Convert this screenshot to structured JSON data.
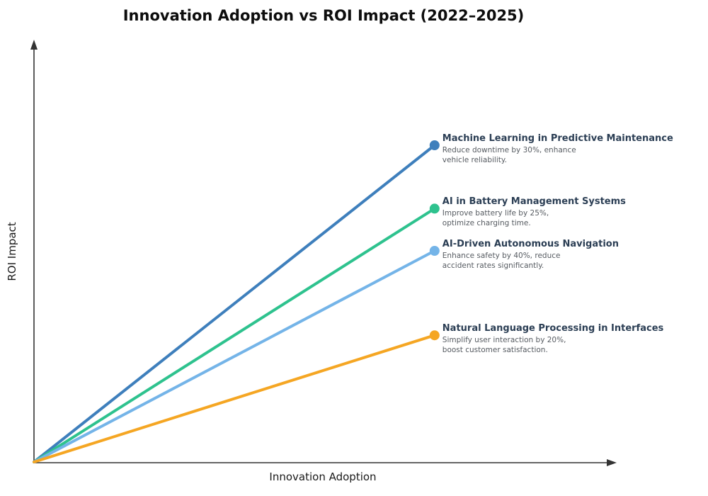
{
  "chart_data": {
    "type": "line",
    "title": "Innovation Adoption vs ROI Impact (2022–2025)",
    "xlabel": "Innovation Adoption",
    "ylabel": "ROI Impact",
    "xlim": [
      0,
      1
    ],
    "ylim": [
      0,
      1
    ],
    "grid": false,
    "ticks": "none (bare arrow-tipped axes, unitless)",
    "legend": "inline labels at line endpoints, right side",
    "axis_color": "#333333",
    "series": [
      {
        "name": "Machine Learning in Predictive Maintenance",
        "description_lines": [
          "Reduce downtime by 30%, enhance",
          "vehicle reliability."
        ],
        "color": "#3e7fbc",
        "x": [
          0,
          0.69
        ],
        "y": [
          0,
          0.75
        ]
      },
      {
        "name": "AI in Battery Management Systems",
        "description_lines": [
          "Improve battery life by 25%,",
          "optimize charging time."
        ],
        "color": "#2ec28e",
        "x": [
          0,
          0.69
        ],
        "y": [
          0,
          0.6
        ]
      },
      {
        "name": "AI-Driven Autonomous Navigation",
        "description_lines": [
          "Enhance safety by 40%, reduce",
          "accident rates significantly."
        ],
        "color": "#74b4e8",
        "x": [
          0,
          0.69
        ],
        "y": [
          0,
          0.5
        ]
      },
      {
        "name": "Natural Language Processing in Interfaces",
        "description_lines": [
          "Simplify user interaction by 20%,",
          "boost customer satisfaction."
        ],
        "color": "#f5a623",
        "x": [
          0,
          0.69
        ],
        "y": [
          0,
          0.3
        ]
      }
    ]
  }
}
